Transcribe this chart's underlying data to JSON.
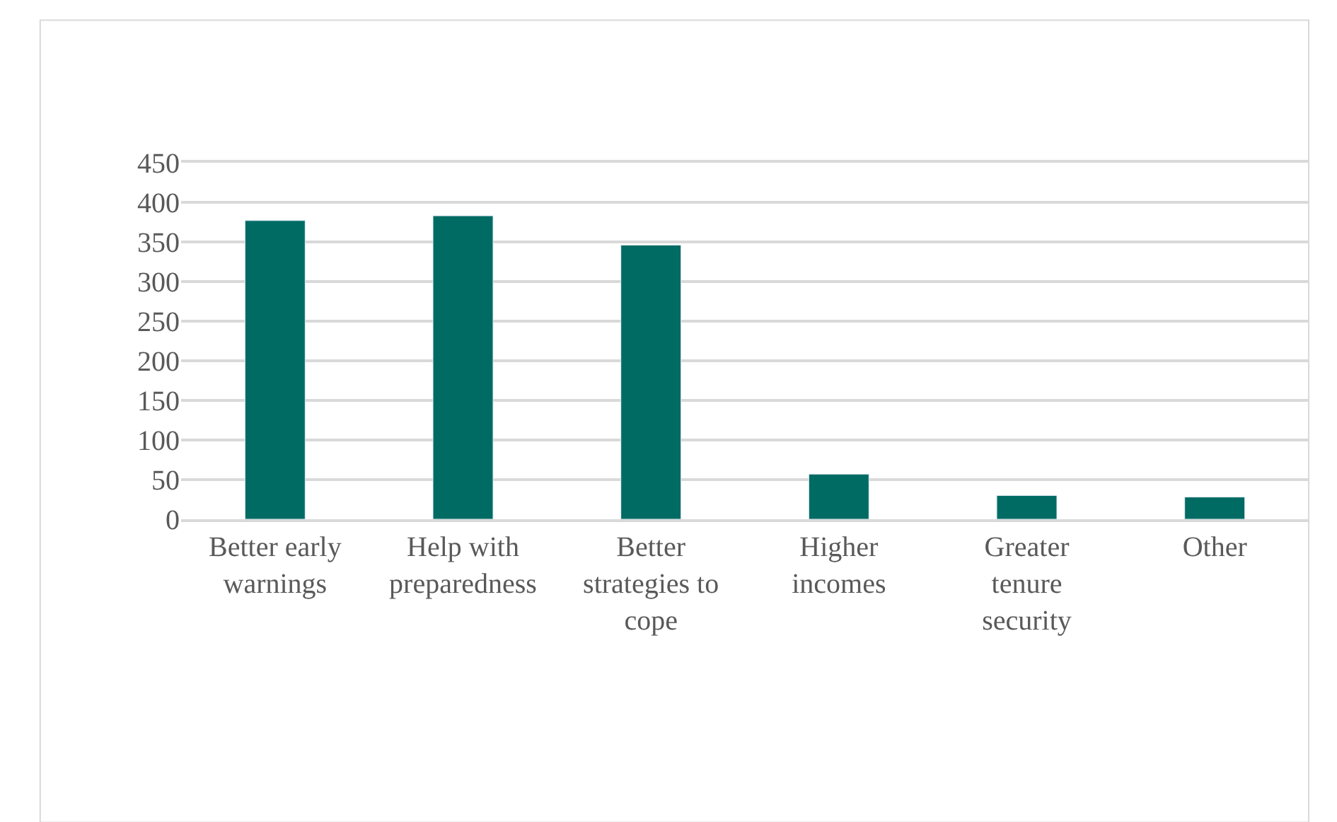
{
  "chart_data": {
    "type": "bar",
    "categories": [
      "Better early warnings",
      "Help with preparedness",
      "Better strategies to cope",
      "Higher incomes",
      "Greater tenure security",
      "Other"
    ],
    "values": [
      377,
      383,
      346,
      57,
      30,
      28
    ],
    "color": "#006b63",
    "ylim": [
      0,
      450
    ],
    "yticks": [
      0,
      50,
      100,
      150,
      200,
      250,
      300,
      350,
      400,
      450
    ],
    "grid": "y"
  }
}
